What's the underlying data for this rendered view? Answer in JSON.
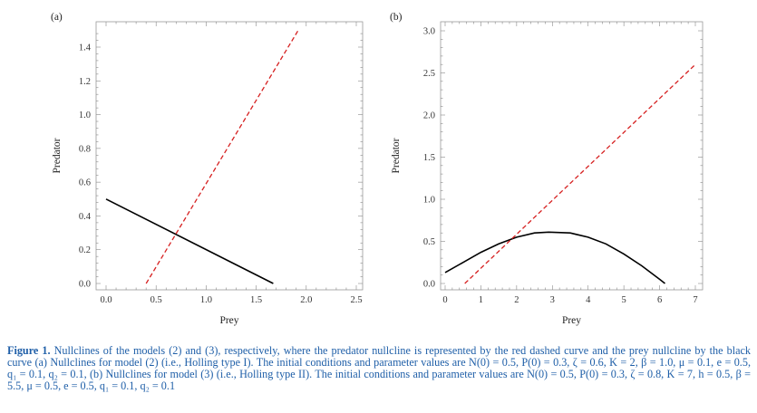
{
  "chart_data": [
    {
      "type": "line",
      "panel_label": "(a)",
      "xlabel": "Prey",
      "ylabel": "Predator",
      "xlim": [
        0,
        2.5
      ],
      "ylim": [
        0,
        1.5
      ],
      "xticks": [
        "0.0",
        "0.5",
        "1.0",
        "1.5",
        "2.0",
        "2.5"
      ],
      "yticks": [
        "0.0",
        "0.2",
        "0.4",
        "0.6",
        "0.8",
        "1.0",
        "1.2",
        "1.4"
      ],
      "xtick_values": [
        0,
        0.5,
        1.0,
        1.5,
        2.0,
        2.5
      ],
      "ytick_values": [
        0,
        0.2,
        0.4,
        0.6,
        0.8,
        1.0,
        1.2,
        1.4
      ],
      "series": [
        {
          "style": "solid",
          "color": "#000000",
          "x": [
            0,
            1.67
          ],
          "y": [
            0.5,
            0
          ]
        },
        {
          "style": "dashed",
          "color": "#d62020",
          "x": [
            0.4,
            1.92
          ],
          "y": [
            0,
            1.5
          ]
        }
      ]
    },
    {
      "type": "line",
      "panel_label": "(b)",
      "xlabel": "Prey",
      "ylabel": "Predator",
      "xlim": [
        0,
        7
      ],
      "ylim": [
        0,
        3.0
      ],
      "xticks": [
        "0",
        "1",
        "2",
        "3",
        "4",
        "5",
        "6",
        "7"
      ],
      "yticks": [
        "0.0",
        "0.5",
        "1.0",
        "1.5",
        "2.0",
        "2.5",
        "3.0"
      ],
      "xtick_values": [
        0,
        1,
        2,
        3,
        4,
        5,
        6,
        7
      ],
      "ytick_values": [
        0,
        0.5,
        1.0,
        1.5,
        2.0,
        2.5,
        3.0
      ],
      "series": [
        {
          "style": "solid",
          "color": "#000000",
          "x": [
            0,
            0.5,
            1,
            1.5,
            2,
            2.5,
            2.9,
            3.5,
            4,
            4.5,
            5,
            5.5,
            6,
            6.15
          ],
          "y": [
            0.13,
            0.25,
            0.37,
            0.47,
            0.55,
            0.6,
            0.61,
            0.6,
            0.55,
            0.47,
            0.35,
            0.21,
            0.05,
            0
          ]
        },
        {
          "style": "dashed",
          "color": "#d62020",
          "x": [
            0.55,
            7
          ],
          "y": [
            0,
            2.6
          ]
        }
      ]
    }
  ],
  "caption": {
    "label": "Figure 1.",
    "text_colored": " Nullclines of the models (2) and (3), respectively, where the predator nullcline is represented by the red dashed curve and the prey nullcline by the black curve (a) Nullclines for model (2) (i.e., Holling type I). The initial conditions and parameter values are N(0) = 0.5, P(0) = 0.3, ζ = 0.6, K = 2, β = 1.0, μ = 0.1, e = 0.5, q₁ = 0.1, q₂ = 0.1, (b) Nullclines for model (3) (i.e., Holling type II). The initial conditions and parameter values are N(0) = 0.5, P(0) = 0.3, ζ = 0.8, K = 7, h = 0.5, β = 5.5, μ = 0.5, e = 0.5, q₁ = 0.1, q₂ = 0.1"
  }
}
